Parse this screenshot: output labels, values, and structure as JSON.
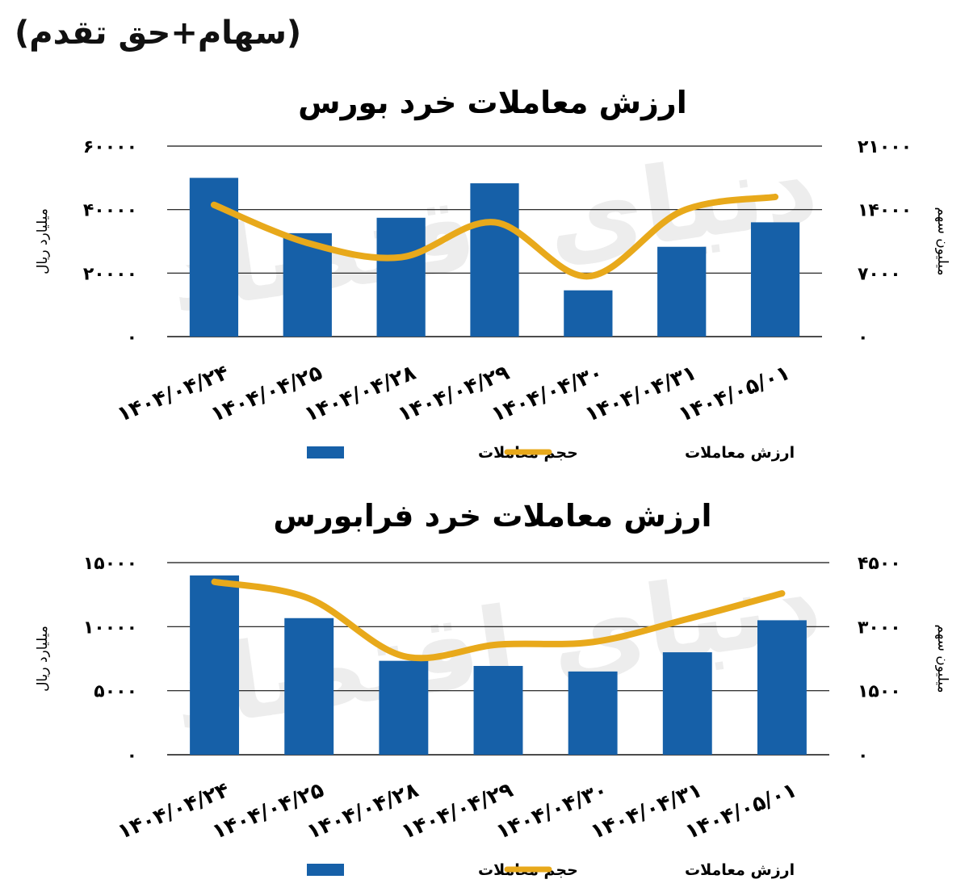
{
  "page": {
    "header_note": "(سهام+حق تقدم)",
    "watermark": "دنیای اقتصاد",
    "colors": {
      "bar": "#1660a8",
      "line": "#e8a91b",
      "grid": "#111111",
      "text": "#111111"
    }
  },
  "chart_data": [
    {
      "type": "bar",
      "title": "ارزش معاملات خرد بورس",
      "categories": [
        "۱۴۰۴/۰۴/۲۴",
        "۱۴۰۴/۰۴/۲۵",
        "۱۴۰۴/۰۴/۲۸",
        "۱۴۰۴/۰۴/۲۹",
        "۱۴۰۴/۰۴/۳۰",
        "۱۴۰۴/۰۴/۳۱",
        "۱۴۰۴/۰۵/۰۱"
      ],
      "left_axis": {
        "label": "میلیارد ریال",
        "ylim": [
          0,
          60000
        ],
        "ticks": [
          "۰",
          "۲۰۰۰۰",
          "۴۰۰۰۰",
          "۶۰۰۰۰"
        ]
      },
      "right_axis": {
        "label": "میلیون سهم",
        "ylim": [
          0,
          21000
        ],
        "ticks": [
          "۰",
          "۷۰۰۰",
          "۱۴۰۰۰",
          "۲۱۰۰۰"
        ]
      },
      "series": [
        {
          "name": "حجم معاملات",
          "kind": "bar",
          "axis": "right",
          "values": [
            17500,
            11400,
            13100,
            16900,
            5100,
            9900,
            12600
          ]
        },
        {
          "name": "ارزش معاملات",
          "kind": "line",
          "axis": "left",
          "values": [
            41500,
            29500,
            25000,
            36000,
            19000,
            39500,
            44000
          ]
        }
      ],
      "grid": true,
      "legend": "bottom"
    },
    {
      "type": "bar",
      "title": "ارزش معاملات خرد فرابورس",
      "categories": [
        "۱۴۰۴/۰۴/۲۴",
        "۱۴۰۴/۰۴/۲۵",
        "۱۴۰۴/۰۴/۲۸",
        "۱۴۰۴/۰۴/۲۹",
        "۱۴۰۴/۰۴/۳۰",
        "۱۴۰۴/۰۴/۳۱",
        "۱۴۰۴/۰۵/۰۱"
      ],
      "left_axis": {
        "label": "میلیارد ریال",
        "ylim": [
          0,
          15000
        ],
        "ticks": [
          "۰",
          "۵۰۰۰",
          "۱۰۰۰۰",
          "۱۵۰۰۰"
        ]
      },
      "right_axis": {
        "label": "میلیون سهم",
        "ylim": [
          0,
          4500
        ],
        "ticks": [
          "۰",
          "۱۵۰۰",
          "۳۰۰۰",
          "۴۵۰۰"
        ]
      },
      "series": [
        {
          "name": "حجم معاملات",
          "kind": "bar",
          "axis": "right",
          "values": [
            4200,
            3200,
            2200,
            2080,
            1950,
            2400,
            3150
          ]
        },
        {
          "name": "ارزش معاملات",
          "kind": "line",
          "axis": "left",
          "values": [
            13500,
            12200,
            7700,
            8600,
            8800,
            10600,
            12600
          ]
        }
      ],
      "grid": true,
      "legend": "bottom"
    }
  ]
}
